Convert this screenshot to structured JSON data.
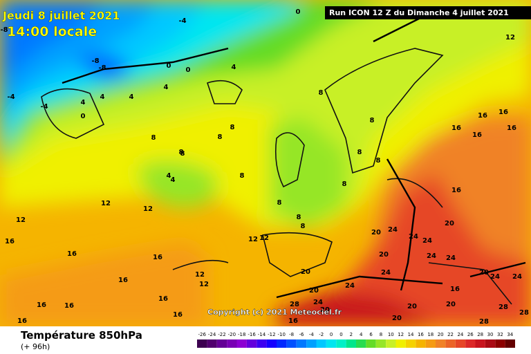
{
  "header": {
    "date": "Jeudi 8 juillet 2021",
    "time": "14:00 locale",
    "run": "Run ICON 12 Z du Dimanche 4 juillet 2021"
  },
  "copyright": "Copyright (c) 2021 Meteociel.fr",
  "footer": {
    "title": "Température 850hPa",
    "lead": "(+ 96h)"
  },
  "contour_labels": [
    -8,
    -4,
    -8,
    -8,
    -4,
    -4,
    0,
    0,
    0,
    4,
    4,
    4,
    0,
    4,
    4,
    8,
    8,
    8,
    8,
    4,
    4,
    8,
    8,
    8,
    8,
    8,
    8,
    8,
    8,
    12,
    12,
    12,
    12,
    16,
    16,
    16,
    16,
    16,
    16,
    16,
    16,
    12,
    12,
    16,
    16,
    12,
    16,
    16,
    16,
    16,
    16,
    20,
    20,
    20,
    24,
    24,
    24,
    24,
    24,
    20,
    20,
    24,
    20,
    20,
    24,
    16,
    20,
    24,
    24,
    28,
    28,
    28,
    24,
    20,
    20,
    28,
    16,
    12,
    8,
    8
  ],
  "legend": {
    "values": [
      -26,
      -24,
      -22,
      -20,
      -18,
      -16,
      -14,
      -12,
      -10,
      -8,
      -6,
      -4,
      -2,
      0,
      0,
      2,
      4,
      6,
      8,
      10,
      12,
      14,
      16,
      18,
      20,
      22,
      24,
      26,
      28,
      30,
      32,
      34
    ],
    "colors": [
      "#3c0050",
      "#50006e",
      "#640096",
      "#7800b4",
      "#8c00d2",
      "#6400dc",
      "#3c00f0",
      "#1400ff",
      "#0028ff",
      "#0050ff",
      "#0078ff",
      "#00a0ff",
      "#00c8ff",
      "#00e6f0",
      "#00f0c8",
      "#00e68c",
      "#28dc50",
      "#64dc28",
      "#96e628",
      "#c8f028",
      "#f0f000",
      "#f5d200",
      "#f5b400",
      "#f59b14",
      "#f08228",
      "#eb6428",
      "#e64628",
      "#dc2828",
      "#c8141e",
      "#aa0a14",
      "#8c0000",
      "#640000"
    ]
  }
}
